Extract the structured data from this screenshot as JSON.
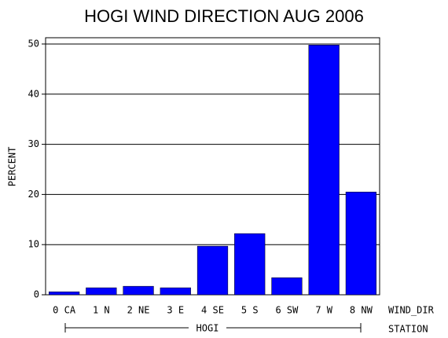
{
  "chart_data": {
    "type": "bar",
    "title": "HOGI WIND DIRECTION AUG 2006",
    "y_label": "PERCENT",
    "x_label": "WIND_DIR",
    "group_label": "HOGI",
    "group_axis_label": "STATION",
    "categories": [
      "0 CA",
      "1 N",
      "2 NE",
      "3 E",
      "4 SE",
      "5 S",
      "6 SW",
      "7 W",
      "8 NW"
    ],
    "values": [
      0.6,
      1.4,
      1.7,
      1.4,
      9.7,
      12.2,
      3.4,
      49.8,
      20.5
    ],
    "color": "#0000ff",
    "ylim": [
      0,
      51.25
    ],
    "yticks": [
      0,
      10,
      20,
      30,
      40,
      50
    ],
    "grid": true
  }
}
